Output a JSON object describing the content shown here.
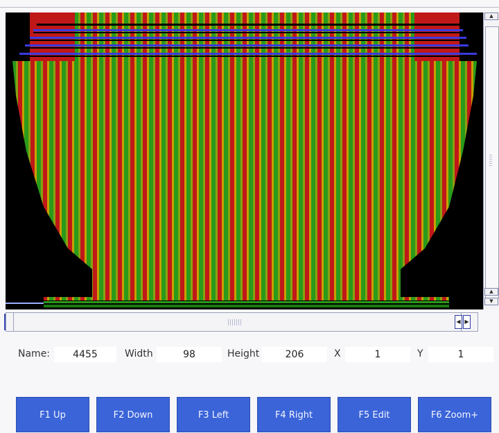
{
  "fields": {
    "name_label": "Name:",
    "name_value": "4455",
    "width_label": "Width",
    "width_value": "98",
    "height_label": "Height",
    "height_value": "206",
    "x_label": "X",
    "x_value": "1",
    "y_label": "Y",
    "y_value": "1"
  },
  "buttons": {
    "f1": "F1 Up",
    "f2": "F2 Down",
    "f3": "F3 Left",
    "f4": "F4 Right",
    "f5": "F5 Edit",
    "f6": "F6 Zoom+"
  },
  "colors": {
    "stripe_red": "#c01818",
    "stripe_green": "#2a9a1a",
    "stripe_orange": "#c8a000",
    "button_bg": "#3a64d8",
    "canvas_bg": "#000000"
  }
}
